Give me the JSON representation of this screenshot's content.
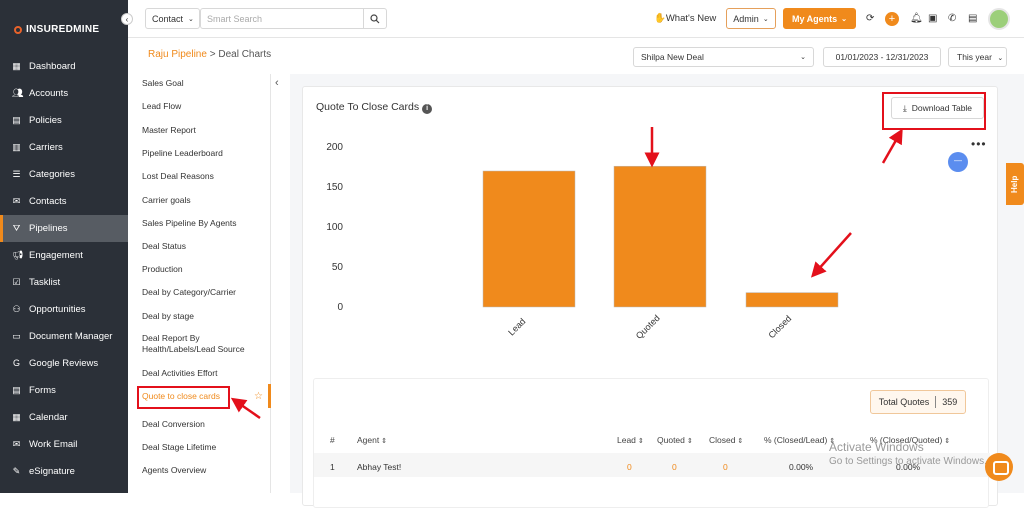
{
  "brand": "INSUREDMINE",
  "sidebar": {
    "items": [
      {
        "label": "Dashboard",
        "icon": "dashboard-icon"
      },
      {
        "label": "Accounts",
        "icon": "accounts-icon"
      },
      {
        "label": "Policies",
        "icon": "policies-icon"
      },
      {
        "label": "Carriers",
        "icon": "carriers-icon"
      },
      {
        "label": "Categories",
        "icon": "categories-icon"
      },
      {
        "label": "Contacts",
        "icon": "contacts-icon"
      },
      {
        "label": "Pipelines",
        "icon": "pipelines-icon",
        "active": true
      },
      {
        "label": "Engagement",
        "icon": "megaphone-icon"
      },
      {
        "label": "Tasklist",
        "icon": "tasklist-icon"
      },
      {
        "label": "Opportunities",
        "icon": "opportunities-icon"
      },
      {
        "label": "Document Manager",
        "icon": "folder-icon"
      },
      {
        "label": "Google Reviews",
        "icon": "google-icon"
      },
      {
        "label": "Forms",
        "icon": "forms-icon"
      },
      {
        "label": "Calendar",
        "icon": "calendar-icon"
      },
      {
        "label": "Work Email",
        "icon": "email-icon"
      },
      {
        "label": "eSignature",
        "icon": "signature-icon"
      }
    ]
  },
  "topbar": {
    "contact_dropdown": "Contact",
    "search_placeholder": "Smart Search",
    "whats_new": "What's New",
    "admin": "Admin",
    "my_agents": "My Agents"
  },
  "breadcrumb": {
    "parent": "Raju Pipeline",
    "separator": ">",
    "current": "Deal Charts"
  },
  "filters": {
    "deal": "Shilpa New Deal",
    "date_range": "01/01/2023 - 12/31/2023",
    "period": "This year"
  },
  "reports": [
    "Sales Goal",
    "Lead Flow",
    "Master Report",
    "Pipeline Leaderboard",
    "Lost Deal Reasons",
    "Carrier goals",
    "Sales Pipeline By Agents",
    "Deal Status",
    "Production",
    "Deal by Category/Carrier",
    "Deal by stage",
    "Deal Report By Health/Labels/Lead Source",
    "Deal Activities Effort",
    "Quote to close cards",
    "Deal Conversion",
    "Deal Stage Lifetime",
    "Agents Overview"
  ],
  "active_report": "Quote to close cards",
  "card": {
    "title": "Quote To Close Cards",
    "download_label": "Download Table"
  },
  "chart_data": {
    "type": "bar",
    "categories": [
      "Lead",
      "Quoted",
      "Closed"
    ],
    "values": [
      170,
      176,
      18
    ],
    "ylim": [
      0,
      200
    ],
    "yticks": [
      0,
      50,
      100,
      150,
      200
    ],
    "color": "#f08a1c"
  },
  "table": {
    "total_label": "Total Quotes",
    "total_value": "359",
    "headers": [
      "#",
      "Agent",
      "Lead",
      "Quoted",
      "Closed",
      "% (Closed/Lead)",
      "% (Closed/Quoted)"
    ],
    "rows": [
      [
        "1",
        "Abhay Test!",
        "0",
        "0",
        "0",
        "0.00%",
        "0.00%"
      ]
    ]
  },
  "watermark": {
    "line1": "Activate Windows",
    "line2": "Go to Settings to activate Windows."
  },
  "help": "Help",
  "colors": {
    "accent": "#f08a1c",
    "sidebar_bg": "#2b3038",
    "highlight": "#e3101b"
  }
}
